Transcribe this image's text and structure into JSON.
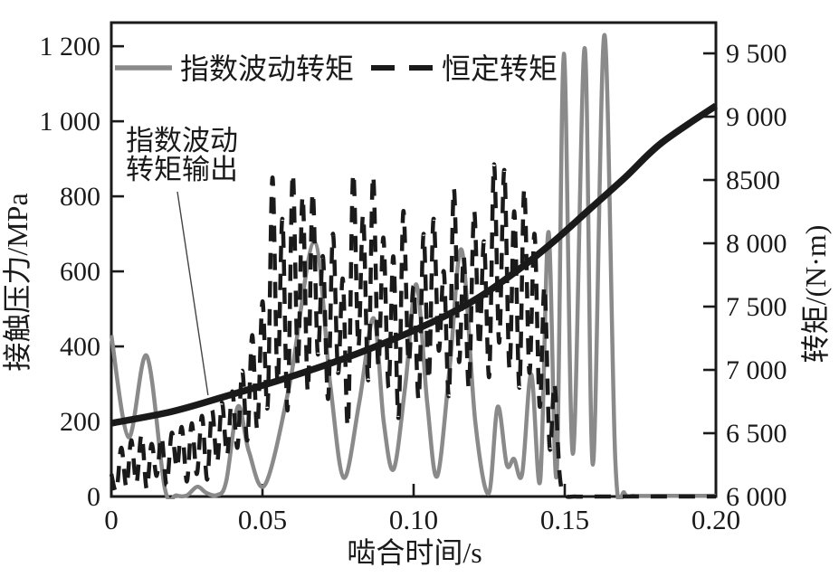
{
  "figure": {
    "background": "#ffffff",
    "axis_color": "#1a1a1a",
    "gray_color": "#8a8a8a"
  },
  "chart_data": {
    "type": "line",
    "title": "",
    "xlabel": "啮合时间/s",
    "ylabel_left": "接触压力/MPa",
    "ylabel_right": "转矩/(N·m)",
    "x_range": [
      0,
      0.2
    ],
    "x_ticks": [
      0,
      0.05,
      0.1,
      0.15,
      0.2
    ],
    "x_tick_labels": [
      "0",
      "0.05",
      "0.10",
      "0.15",
      "0.20"
    ],
    "yleft_range": [
      0,
      1263
    ],
    "yleft_ticks": [
      0,
      200,
      400,
      600,
      800,
      1000,
      1200
    ],
    "yleft_tick_labels": [
      "0",
      "200",
      "400",
      "600",
      "800",
      "1 000",
      "1 200"
    ],
    "yright_range": [
      6000,
      9743
    ],
    "yright_ticks": [
      6000,
      6500,
      7000,
      7500,
      8000,
      8500,
      9000,
      9500
    ],
    "yright_tick_labels": [
      "6 000",
      "6 500",
      "7 000",
      "7 500",
      "8 000",
      "8500",
      "9 000",
      "9 500"
    ],
    "grid": false,
    "legend_position": "top-inside",
    "legend": [
      {
        "label": "指数波动转矩",
        "style": "solid",
        "color": "#8a8a8a"
      },
      {
        "label": "恒定转矩",
        "style": "dashed",
        "color": "#1a1a1a"
      }
    ],
    "annotation": {
      "lines": [
        "指数波动",
        "转矩输出"
      ],
      "points_to": "指数波动转矩输出",
      "target": {
        "t": 0.032,
        "torque": 6800
      }
    },
    "series": [
      {
        "name": "指数波动转矩",
        "axis": "left",
        "unit": "MPa",
        "style": "solid",
        "color": "#8a8a8a",
        "width": 4.5,
        "points": [
          [
            0.0,
            430
          ],
          [
            0.0057,
            158
          ],
          [
            0.0117,
            375
          ],
          [
            0.0177,
            22
          ],
          [
            0.0215,
            3
          ],
          [
            0.025,
            3
          ],
          [
            0.0284,
            26
          ],
          [
            0.0314,
            10
          ],
          [
            0.035,
            4
          ],
          [
            0.038,
            40
          ],
          [
            0.0419,
            240
          ],
          [
            0.0455,
            120
          ],
          [
            0.0509,
            32
          ],
          [
            0.059,
            300
          ],
          [
            0.0671,
            678
          ],
          [
            0.0724,
            300
          ],
          [
            0.0769,
            50
          ],
          [
            0.082,
            250
          ],
          [
            0.0868,
            475
          ],
          [
            0.0901,
            200
          ],
          [
            0.0934,
            73
          ],
          [
            0.0973,
            300
          ],
          [
            0.1009,
            565
          ],
          [
            0.1045,
            250
          ],
          [
            0.1078,
            54
          ],
          [
            0.112,
            350
          ],
          [
            0.1159,
            657
          ],
          [
            0.1204,
            200
          ],
          [
            0.1248,
            8
          ],
          [
            0.1278,
            239
          ],
          [
            0.1308,
            85
          ],
          [
            0.1332,
            100
          ],
          [
            0.1359,
            60
          ],
          [
            0.1389,
            326
          ],
          [
            0.1419,
            43
          ],
          [
            0.1446,
            705
          ],
          [
            0.1473,
            57
          ],
          [
            0.1497,
            1180
          ],
          [
            0.1527,
            114
          ],
          [
            0.1566,
            1195
          ],
          [
            0.1593,
            85
          ],
          [
            0.1631,
            1230
          ],
          [
            0.1667,
            100
          ],
          [
            0.1697,
            10
          ],
          [
            0.173,
            2
          ],
          [
            0.18,
            2
          ],
          [
            0.19,
            2
          ],
          [
            0.2,
            2
          ]
        ]
      },
      {
        "name": "恒定转矩",
        "axis": "left",
        "unit": "MPa",
        "style": "dashed",
        "color": "#1a1a1a",
        "width": 4.5,
        "points": [
          [
            0.0,
            60
          ],
          [
            0.0017,
            15
          ],
          [
            0.0033,
            130
          ],
          [
            0.005,
            25
          ],
          [
            0.0066,
            150
          ],
          [
            0.0083,
            35
          ],
          [
            0.01,
            165
          ],
          [
            0.0117,
            20
          ],
          [
            0.0133,
            140
          ],
          [
            0.015,
            55
          ],
          [
            0.0166,
            160
          ],
          [
            0.0183,
            30
          ],
          [
            0.02,
            170
          ],
          [
            0.0217,
            75
          ],
          [
            0.0233,
            185
          ],
          [
            0.025,
            40
          ],
          [
            0.0266,
            195
          ],
          [
            0.0283,
            60
          ],
          [
            0.03,
            215
          ],
          [
            0.0317,
            45
          ],
          [
            0.0333,
            230
          ],
          [
            0.035,
            90
          ],
          [
            0.0366,
            250
          ],
          [
            0.0383,
            110
          ],
          [
            0.04,
            280
          ],
          [
            0.0417,
            130
          ],
          [
            0.0433,
            335
          ],
          [
            0.045,
            150
          ],
          [
            0.0466,
            430
          ],
          [
            0.0483,
            180
          ],
          [
            0.05,
            520
          ],
          [
            0.0517,
            240
          ],
          [
            0.0533,
            850
          ],
          [
            0.055,
            300
          ],
          [
            0.0566,
            740
          ],
          [
            0.0583,
            230
          ],
          [
            0.06,
            860
          ],
          [
            0.0617,
            350
          ],
          [
            0.0633,
            800
          ],
          [
            0.065,
            280
          ],
          [
            0.0666,
            810
          ],
          [
            0.0683,
            380
          ],
          [
            0.07,
            640
          ],
          [
            0.0717,
            260
          ],
          [
            0.0733,
            700
          ],
          [
            0.075,
            330
          ],
          [
            0.0766,
            580
          ],
          [
            0.0783,
            190
          ],
          [
            0.08,
            860
          ],
          [
            0.0817,
            400
          ],
          [
            0.0833,
            750
          ],
          [
            0.085,
            310
          ],
          [
            0.0866,
            855
          ],
          [
            0.0883,
            350
          ],
          [
            0.09,
            690
          ],
          [
            0.0917,
            290
          ],
          [
            0.0933,
            640
          ],
          [
            0.095,
            210
          ],
          [
            0.0966,
            760
          ],
          [
            0.0983,
            360
          ],
          [
            0.1,
            560
          ],
          [
            0.1017,
            260
          ],
          [
            0.1033,
            700
          ],
          [
            0.105,
            310
          ],
          [
            0.1066,
            740
          ],
          [
            0.1083,
            390
          ],
          [
            0.11,
            600
          ],
          [
            0.1117,
            270
          ],
          [
            0.1133,
            820
          ],
          [
            0.115,
            360
          ],
          [
            0.1166,
            640
          ],
          [
            0.1183,
            290
          ],
          [
            0.12,
            760
          ],
          [
            0.1217,
            400
          ],
          [
            0.1233,
            680
          ],
          [
            0.125,
            320
          ],
          [
            0.1266,
            885
          ],
          [
            0.1283,
            410
          ],
          [
            0.13,
            870
          ],
          [
            0.1317,
            340
          ],
          [
            0.1333,
            760
          ],
          [
            0.135,
            290
          ],
          [
            0.1366,
            820
          ],
          [
            0.1383,
            330
          ],
          [
            0.14,
            700
          ],
          [
            0.1417,
            240
          ],
          [
            0.1433,
            560
          ],
          [
            0.145,
            130
          ],
          [
            0.1466,
            300
          ],
          [
            0.1483,
            60
          ],
          [
            0.15,
            5
          ],
          [
            0.1533,
            0
          ],
          [
            0.16,
            0
          ],
          [
            0.17,
            0
          ],
          [
            0.18,
            0
          ],
          [
            0.19,
            0
          ],
          [
            0.2,
            0
          ]
        ]
      },
      {
        "name": "指数波动转矩输出",
        "axis": "right",
        "unit": "N·m",
        "style": "solid",
        "color": "#1a1a1a",
        "width": 7.5,
        "points": [
          [
            0.0,
            6579
          ],
          [
            0.02,
            6671
          ],
          [
            0.038,
            6793
          ],
          [
            0.056,
            6921
          ],
          [
            0.074,
            7064
          ],
          [
            0.092,
            7229
          ],
          [
            0.11,
            7421
          ],
          [
            0.122,
            7579
          ],
          [
            0.134,
            7779
          ],
          [
            0.146,
            8007
          ],
          [
            0.158,
            8264
          ],
          [
            0.17,
            8521
          ],
          [
            0.182,
            8793
          ],
          [
            0.2,
            9086
          ]
        ]
      }
    ]
  }
}
